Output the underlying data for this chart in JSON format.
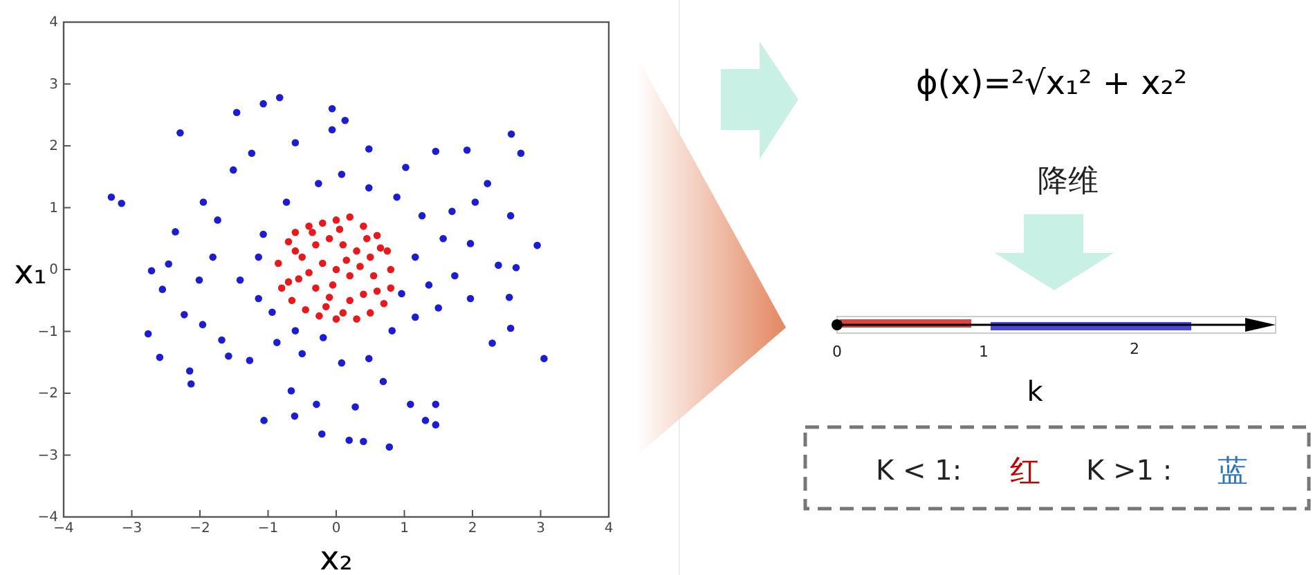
{
  "chart_data": [
    {
      "type": "scatter",
      "xlabel": "x₂",
      "ylabel": "x₁",
      "xlim": [
        -4,
        4
      ],
      "ylim": [
        -4,
        4
      ],
      "xticks": [
        -4,
        -3,
        -2,
        -1,
        0,
        1,
        2,
        3,
        4
      ],
      "yticks": [
        -4,
        -3,
        -2,
        -1,
        0,
        1,
        2,
        3,
        4
      ],
      "grid": false,
      "marker": "circle",
      "series": [
        {
          "color": "#1c1cd0",
          "x": [
            -3.3,
            -3.15,
            -2.29,
            -1.46,
            -1.07,
            -0.83,
            -0.06,
            0.13,
            2.57,
            2.71,
            2.95,
            3.05,
            -2.76,
            -2.59,
            -2.15,
            -2.13,
            -1.06,
            -0.61,
            -0.21,
            0.19,
            0.4,
            0.78,
            1.46,
            1.31,
            1.46,
            1.09,
            2.56,
            2.29,
            2.54,
            2.64,
            2.38,
            2.56,
            2.22,
            1.92,
            1.46,
            1.02,
            0.48,
            -0.06,
            -0.6,
            -1.24,
            -1.51,
            -1.95,
            -2.36,
            -2.46,
            -2.71,
            -2.55,
            -2.23,
            -1.96,
            -1.68,
            -1.58,
            -1.27,
            -0.87,
            -0.5,
            -0.19,
            0.08,
            0.48,
            0.82,
            1.16,
            1.5,
            1.74,
            1.57,
            1.26,
            0.89,
            0.48,
            0.08,
            -0.26,
            -0.73,
            -1.07,
            -1.14,
            -1.41,
            -1.14,
            -0.94,
            -0.6,
            1.16,
            1.36,
            0.96,
            1.97,
            1.97,
            1.7,
            2.04,
            -1.81,
            -1.74,
            -2.01,
            0.69,
            -0.66,
            -0.29,
            0.28
          ],
          "values": [
            1.17,
            1.07,
            2.21,
            2.54,
            2.68,
            2.78,
            2.6,
            2.41,
            2.19,
            1.88,
            0.39,
            -1.44,
            -1.04,
            -1.42,
            -1.64,
            -1.85,
            -2.44,
            -2.37,
            -2.66,
            -2.76,
            -2.78,
            -2.87,
            -2.51,
            -2.44,
            -2.18,
            -2.18,
            -0.95,
            -1.19,
            -0.45,
            0.03,
            0.07,
            0.87,
            1.39,
            1.93,
            1.91,
            1.65,
            1.95,
            2.26,
            2.05,
            1.88,
            1.61,
            1.09,
            0.61,
            0.09,
            -0.02,
            -0.32,
            -0.73,
            -0.89,
            -1.14,
            -1.4,
            -1.47,
            -1.18,
            -1.36,
            -1.1,
            -1.51,
            -1.44,
            -0.99,
            -0.77,
            -0.62,
            -0.1,
            0.5,
            0.87,
            1.17,
            1.32,
            1.54,
            1.39,
            1.09,
            0.57,
            0.2,
            -0.17,
            -0.47,
            -0.69,
            -0.99,
            0.2,
            -0.25,
            -0.39,
            -0.47,
            0.42,
            0.94,
            1.09,
            0.2,
            0.8,
            -0.17,
            -1.81,
            -1.96,
            -2.18,
            -2.22
          ]
        },
        {
          "color": "#e8191c",
          "x": [
            -0.85,
            -0.8,
            -0.7,
            -0.6,
            -0.4,
            -0.2,
            0,
            0.2,
            0.4,
            0.6,
            0.75,
            0.8,
            0.8,
            0.7,
            0.5,
            0.3,
            0,
            -0.25,
            -0.45,
            -0.65,
            -0.5,
            -0.3,
            -0.1,
            0.1,
            0.3,
            0.5,
            0.55,
            0.4,
            0.2,
            -0.1,
            -0.3,
            -0.55,
            -0.2,
            0,
            0.2,
            0.15,
            -0.4,
            0.35,
            -0.05,
            0.05,
            -0.6,
            0.65,
            0.6,
            -0.7,
            -0.15,
            0.1,
            0.45,
            -0.35
          ],
          "values": [
            0.1,
            -0.3,
            0.45,
            0.6,
            0.7,
            0.75,
            0.8,
            0.85,
            0.7,
            0.55,
            0.3,
            0,
            -0.3,
            -0.55,
            -0.7,
            -0.8,
            -0.8,
            -0.75,
            -0.65,
            -0.5,
            0.2,
            0.4,
            0.5,
            0.4,
            0.3,
            0.2,
            -0.1,
            -0.4,
            -0.5,
            -0.45,
            -0.3,
            -0.15,
            0.1,
            0,
            -0.1,
            0.15,
            -0.05,
            0.05,
            -0.25,
            0.65,
            0.3,
            0.35,
            -0.35,
            -0.2,
            -0.6,
            -0.7,
            0.5,
            0.6
          ]
        }
      ]
    },
    {
      "type": "other",
      "title": "ϕ(x)=²√x₁² + x₂²",
      "xlabel": "k",
      "annotations": [
        "降维",
        "0",
        "1",
        "2",
        "K < 1:",
        "红",
        "K >1 :",
        "蓝"
      ]
    }
  ]
}
